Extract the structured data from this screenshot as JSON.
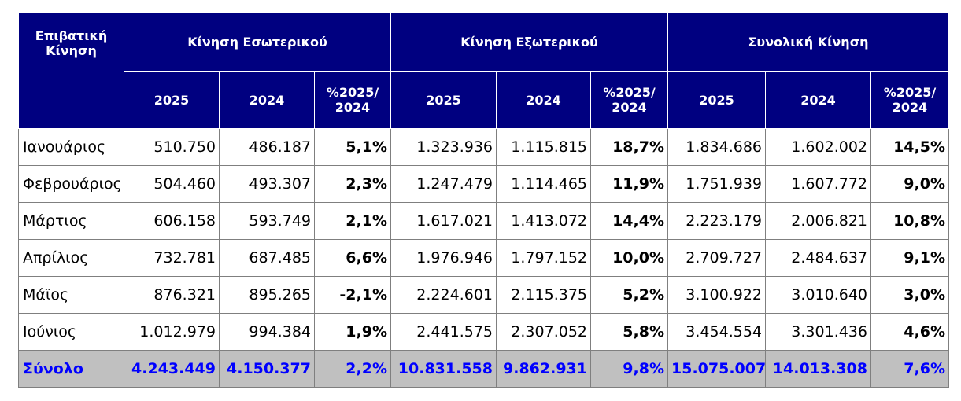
{
  "header": {
    "corner": "Επιβατική Κίνηση",
    "groups": [
      "Κίνηση Εσωτερικού",
      "Κίνηση Εξωτερικού",
      "Συνολική Κίνηση"
    ],
    "sub": [
      "2025",
      "2024",
      "%2025/ 2024"
    ]
  },
  "rows": [
    {
      "month": "Ιανουάριος",
      "d25": "510.750",
      "d24": "486.187",
      "dp": "5,1%",
      "i25": "1.323.936",
      "i24": "1.115.815",
      "ip": "18,7%",
      "t25": "1.834.686",
      "t24": "1.602.002",
      "tp": "14,5%"
    },
    {
      "month": "Φεβρουάριος",
      "d25": "504.460",
      "d24": "493.307",
      "dp": "2,3%",
      "i25": "1.247.479",
      "i24": "1.114.465",
      "ip": "11,9%",
      "t25": "1.751.939",
      "t24": "1.607.772",
      "tp": "9,0%"
    },
    {
      "month": "Μάρτιος",
      "d25": "606.158",
      "d24": "593.749",
      "dp": "2,1%",
      "i25": "1.617.021",
      "i24": "1.413.072",
      "ip": "14,4%",
      "t25": "2.223.179",
      "t24": "2.006.821",
      "tp": "10,8%"
    },
    {
      "month": "Απρίλιος",
      "d25": "732.781",
      "d24": "687.485",
      "dp": "6,6%",
      "i25": "1.976.946",
      "i24": "1.797.152",
      "ip": "10,0%",
      "t25": "2.709.727",
      "t24": "2.484.637",
      "tp": "9,1%"
    },
    {
      "month": "Μάϊος",
      "d25": "876.321",
      "d24": "895.265",
      "dp": "-2,1%",
      "i25": "2.224.601",
      "i24": "2.115.375",
      "ip": "5,2%",
      "t25": "3.100.922",
      "t24": "3.010.640",
      "tp": "3,0%"
    },
    {
      "month": "Ιούνιος",
      "d25": "1.012.979",
      "d24": "994.384",
      "dp": "1,9%",
      "i25": "2.441.575",
      "i24": "2.307.052",
      "ip": "5,8%",
      "t25": "3.454.554",
      "t24": "3.301.436",
      "tp": "4,6%"
    }
  ],
  "total": {
    "label": "Σύνολο",
    "d25": "4.243.449",
    "d24": "4.150.377",
    "dp": "2,2%",
    "i25": "10.831.558",
    "i24": "9.862.931",
    "ip": "9,8%",
    "t25": "15.075.007",
    "t24": "14.013.308",
    "tp": "7,6%"
  },
  "colors": {
    "header_bg": "#000080",
    "header_text": "#ffffff",
    "total_bg": "#c0c0c0",
    "total_text": "#0000ff"
  }
}
